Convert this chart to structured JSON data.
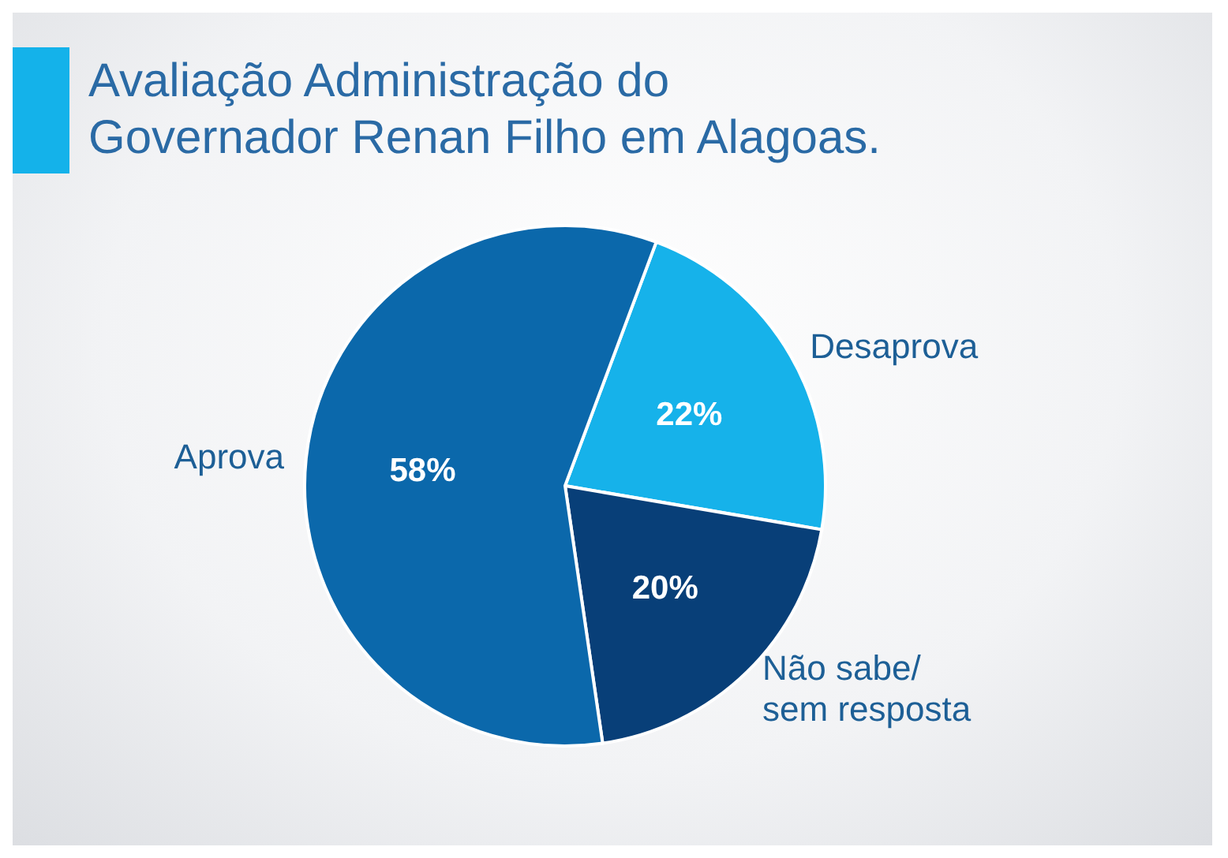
{
  "chart_data": {
    "type": "pie",
    "title": "Avaliação Administração do Governador Renan Filho em Alagoas.",
    "categories": [
      "Desaprova",
      "Não sabe/ sem resposta",
      "Aprova"
    ],
    "values": [
      22,
      20,
      58
    ],
    "colors": [
      "#16b2ea",
      "#083f78",
      "#0b68ab"
    ],
    "value_labels": [
      "22%",
      "20%",
      "58%"
    ],
    "legend": false
  }
}
